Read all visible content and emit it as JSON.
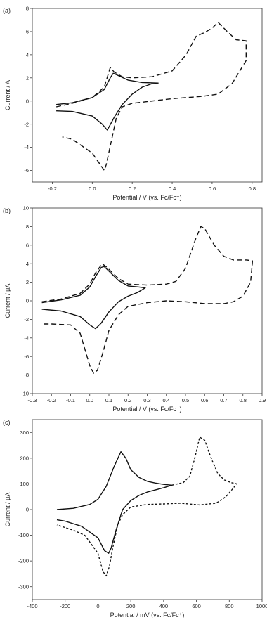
{
  "chart_data": [
    {
      "type": "line",
      "panel_label": "(a)",
      "xlabel": "Potential / V (vs. Fc/Fc⁺)",
      "ylabel": "Current / A",
      "xlim": [
        -0.3,
        0.85
      ],
      "ylim": [
        -7,
        8
      ],
      "xticks": [
        -0.2,
        0.0,
        0.2,
        0.4,
        0.6,
        0.8
      ],
      "xtick_labels": [
        "-0.2",
        "0.0",
        "0.2",
        "0.4",
        "0.6",
        "0.8"
      ],
      "yticks": [
        -6,
        -4,
        -2,
        0,
        2,
        4,
        6,
        8
      ],
      "ytick_labels": [
        "-6",
        "-4",
        "-2",
        "0",
        "2",
        "4",
        "6",
        "8"
      ],
      "grid": false,
      "series": [
        {
          "style": "solid",
          "points": [
            [
              -0.18,
              -0.3
            ],
            [
              -0.1,
              -0.15
            ],
            [
              0.0,
              0.3
            ],
            [
              0.06,
              1.0
            ],
            [
              0.09,
              2.0
            ],
            [
              0.105,
              2.4
            ],
            [
              0.13,
              2.2
            ],
            [
              0.18,
              1.8
            ],
            [
              0.25,
              1.6
            ],
            [
              0.33,
              1.55
            ],
            [
              0.3,
              1.5
            ],
            [
              0.25,
              1.2
            ],
            [
              0.2,
              0.6
            ],
            [
              0.15,
              -0.3
            ],
            [
              0.11,
              -1.4
            ],
            [
              0.085,
              -2.2
            ],
            [
              0.075,
              -2.5
            ],
            [
              0.05,
              -2.0
            ],
            [
              0.0,
              -1.3
            ],
            [
              -0.1,
              -0.9
            ],
            [
              -0.18,
              -0.85
            ]
          ]
        },
        {
          "style": "dashed",
          "points": [
            [
              -0.18,
              -0.5
            ],
            [
              -0.1,
              -0.2
            ],
            [
              0.0,
              0.3
            ],
            [
              0.06,
              1.2
            ],
            [
              0.09,
              2.9
            ],
            [
              0.11,
              2.5
            ],
            [
              0.15,
              2.1
            ],
            [
              0.2,
              2.0
            ],
            [
              0.3,
              2.1
            ],
            [
              0.4,
              2.6
            ],
            [
              0.47,
              4.0
            ],
            [
              0.52,
              5.6
            ],
            [
              0.56,
              5.9
            ],
            [
              0.6,
              6.3
            ],
            [
              0.63,
              6.8
            ],
            [
              0.67,
              6.1
            ],
            [
              0.72,
              5.3
            ],
            [
              0.77,
              5.2
            ],
            [
              0.77,
              3.5
            ],
            [
              0.7,
              1.5
            ],
            [
              0.63,
              0.6
            ],
            [
              0.55,
              0.4
            ],
            [
              0.4,
              0.2
            ],
            [
              0.2,
              -0.2
            ],
            [
              0.15,
              -0.5
            ],
            [
              0.12,
              -1.5
            ],
            [
              0.095,
              -3.5
            ],
            [
              0.07,
              -5.5
            ],
            [
              0.06,
              -6.0
            ],
            [
              0.04,
              -5.5
            ],
            [
              0.0,
              -4.5
            ],
            [
              -0.1,
              -3.3
            ],
            [
              -0.15,
              -3.1
            ]
          ]
        }
      ]
    },
    {
      "type": "line",
      "panel_label": "(b)",
      "xlabel": "Potential / V (vs. Fc/Fc⁺)",
      "ylabel": "Current / μA",
      "xlim": [
        -0.3,
        0.9
      ],
      "ylim": [
        -10,
        10
      ],
      "xticks": [
        -0.3,
        -0.2,
        -0.1,
        0.0,
        0.1,
        0.2,
        0.3,
        0.4,
        0.5,
        0.6,
        0.7,
        0.8,
        0.9
      ],
      "xtick_labels": [
        "-0.3",
        "-0.2",
        "-0.1",
        "0.0",
        "0.1",
        "0.2",
        "0.3",
        "0.4",
        "0.5",
        "0.6",
        "0.7",
        "0.8",
        "0.9"
      ],
      "yticks": [
        -10,
        -8,
        -6,
        -4,
        -2,
        0,
        2,
        4,
        6,
        8,
        10
      ],
      "ytick_labels": [
        "-10",
        "-8",
        "-6",
        "-4",
        "-2",
        "0",
        "2",
        "4",
        "6",
        "8",
        "10"
      ],
      "grid": false,
      "series": [
        {
          "style": "solid",
          "points": [
            [
              -0.25,
              -0.2
            ],
            [
              -0.15,
              0.1
            ],
            [
              -0.05,
              0.6
            ],
            [
              0.0,
              1.5
            ],
            [
              0.03,
              2.6
            ],
            [
              0.06,
              3.6
            ],
            [
              0.075,
              3.7
            ],
            [
              0.1,
              3.2
            ],
            [
              0.15,
              2.2
            ],
            [
              0.2,
              1.6
            ],
            [
              0.25,
              1.5
            ],
            [
              0.29,
              1.4
            ],
            [
              0.25,
              0.9
            ],
            [
              0.2,
              0.5
            ],
            [
              0.15,
              -0.1
            ],
            [
              0.1,
              -1.2
            ],
            [
              0.06,
              -2.4
            ],
            [
              0.03,
              -3.0
            ],
            [
              0.0,
              -2.6
            ],
            [
              -0.05,
              -1.7
            ],
            [
              -0.15,
              -1.1
            ],
            [
              -0.25,
              -0.9
            ]
          ]
        },
        {
          "style": "dashed",
          "points": [
            [
              -0.25,
              -0.1
            ],
            [
              -0.15,
              0.2
            ],
            [
              -0.05,
              0.8
            ],
            [
              0.0,
              1.8
            ],
            [
              0.03,
              3.0
            ],
            [
              0.065,
              4.0
            ],
            [
              0.09,
              3.6
            ],
            [
              0.15,
              2.4
            ],
            [
              0.2,
              1.8
            ],
            [
              0.3,
              1.7
            ],
            [
              0.4,
              1.8
            ],
            [
              0.45,
              2.1
            ],
            [
              0.5,
              3.5
            ],
            [
              0.55,
              6.5
            ],
            [
              0.58,
              8.0
            ],
            [
              0.6,
              7.8
            ],
            [
              0.65,
              6.0
            ],
            [
              0.7,
              4.8
            ],
            [
              0.75,
              4.4
            ],
            [
              0.82,
              4.4
            ],
            [
              0.85,
              4.3
            ],
            [
              0.84,
              2.0
            ],
            [
              0.8,
              0.5
            ],
            [
              0.75,
              -0.1
            ],
            [
              0.7,
              -0.3
            ],
            [
              0.6,
              -0.3
            ],
            [
              0.5,
              -0.1
            ],
            [
              0.4,
              0.0
            ],
            [
              0.3,
              -0.2
            ],
            [
              0.2,
              -0.6
            ],
            [
              0.15,
              -1.5
            ],
            [
              0.1,
              -3.2
            ],
            [
              0.07,
              -5.5
            ],
            [
              0.04,
              -7.5
            ],
            [
              0.02,
              -7.8
            ],
            [
              0.0,
              -7.0
            ],
            [
              -0.05,
              -3.5
            ],
            [
              -0.1,
              -2.6
            ],
            [
              -0.2,
              -2.5
            ],
            [
              -0.25,
              -2.5
            ]
          ]
        }
      ]
    },
    {
      "type": "line",
      "panel_label": "(c)",
      "xlabel": "Potential / mV (vs. Fc/Fc⁺)",
      "ylabel": "Current / μA",
      "xlim": [
        -400,
        1000
      ],
      "ylim": [
        -350,
        350
      ],
      "xticks": [
        -400,
        -200,
        0,
        200,
        400,
        600,
        800,
        1000
      ],
      "xtick_labels": [
        "-400",
        "-200",
        "0",
        "200",
        "400",
        "600",
        "800",
        "1000"
      ],
      "yticks": [
        -300,
        -200,
        -100,
        0,
        100,
        200,
        300
      ],
      "ytick_labels": [
        "-300",
        "-200",
        "-100",
        "0",
        "100",
        "200",
        "300"
      ],
      "grid": false,
      "series": [
        {
          "style": "solid",
          "points": [
            [
              -250,
              0
            ],
            [
              -150,
              5
            ],
            [
              -50,
              20
            ],
            [
              0,
              40
            ],
            [
              50,
              90
            ],
            [
              100,
              170
            ],
            [
              140,
              225
            ],
            [
              170,
              200
            ],
            [
              200,
              155
            ],
            [
              250,
              125
            ],
            [
              300,
              110
            ],
            [
              350,
              103
            ],
            [
              400,
              98
            ],
            [
              450,
              95
            ],
            [
              400,
              85
            ],
            [
              300,
              68
            ],
            [
              250,
              55
            ],
            [
              200,
              35
            ],
            [
              150,
              0
            ],
            [
              110,
              -80
            ],
            [
              80,
              -150
            ],
            [
              65,
              -170
            ],
            [
              40,
              -160
            ],
            [
              0,
              -110
            ],
            [
              -100,
              -65
            ],
            [
              -200,
              -45
            ],
            [
              -250,
              -40
            ]
          ]
        },
        {
          "style": "dotted",
          "points": [
            [
              450,
              95
            ],
            [
              520,
              105
            ],
            [
              560,
              130
            ],
            [
              590,
              200
            ],
            [
              620,
              282
            ],
            [
              650,
              270
            ],
            [
              690,
              200
            ],
            [
              730,
              140
            ],
            [
              770,
              115
            ],
            [
              810,
              105
            ],
            [
              845,
              100
            ],
            [
              820,
              80
            ],
            [
              780,
              50
            ],
            [
              720,
              25
            ],
            [
              620,
              18
            ],
            [
              500,
              25
            ],
            [
              400,
              22
            ],
            [
              300,
              20
            ],
            [
              200,
              10
            ],
            [
              150,
              -20
            ],
            [
              120,
              -60
            ],
            [
              90,
              -150
            ],
            [
              70,
              -220
            ],
            [
              50,
              -258
            ],
            [
              30,
              -240
            ],
            [
              0,
              -170
            ],
            [
              -80,
              -100
            ],
            [
              -150,
              -80
            ],
            [
              -250,
              -60
            ]
          ]
        }
      ]
    }
  ]
}
